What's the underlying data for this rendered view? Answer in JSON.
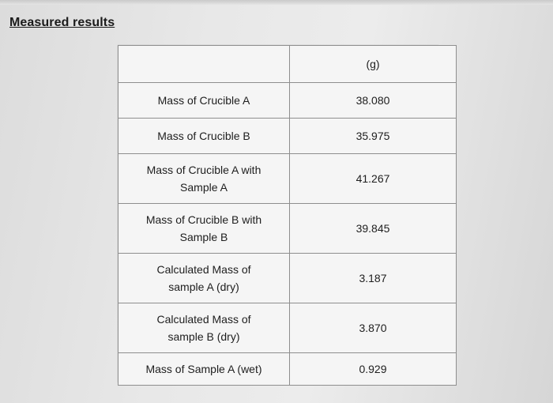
{
  "heading": "Measured results",
  "table": {
    "header": {
      "label": "",
      "unit": "(g)"
    },
    "rows": [
      {
        "label": "Mass of Crucible A",
        "value": "38.080"
      },
      {
        "label": "Mass of Crucible B",
        "value": "35.975"
      },
      {
        "label": "Mass of Crucible A with\nSample A",
        "value": "41.267"
      },
      {
        "label": "Mass of Crucible B with\nSample B",
        "value": "39.845"
      },
      {
        "label": "Calculated Mass of\nsample A (dry)",
        "value": "3.187"
      },
      {
        "label": "Calculated Mass of\nsample B (dry)",
        "value": "3.870"
      },
      {
        "label": "Mass of Sample A (wet)",
        "value": "0.929"
      }
    ]
  }
}
